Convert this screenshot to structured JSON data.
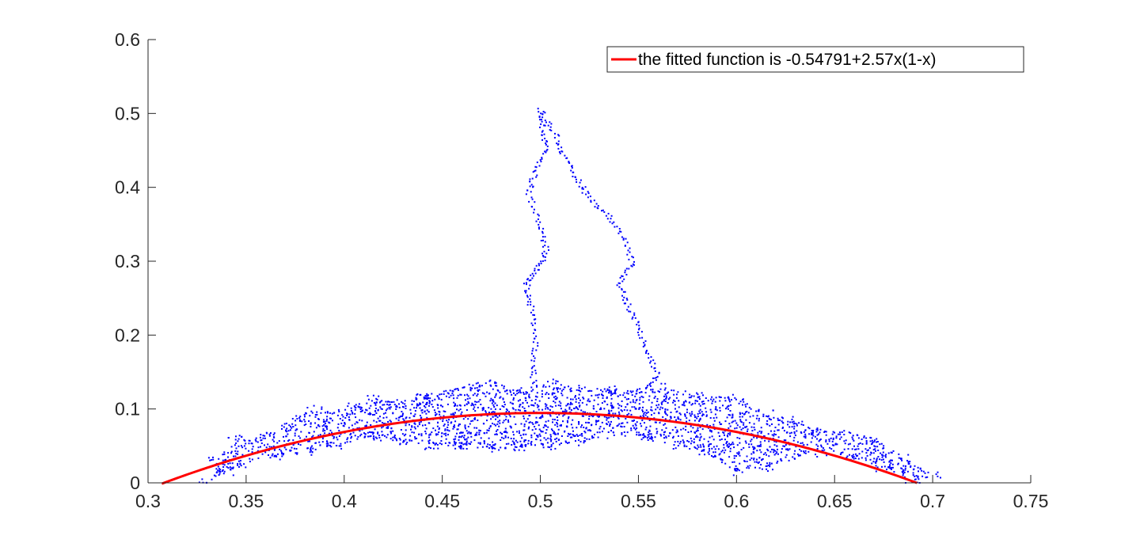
{
  "chart_data": {
    "type": "scatter",
    "title": "",
    "xlabel": "",
    "ylabel": "",
    "xlim": [
      0.3,
      0.75
    ],
    "ylim": [
      0,
      0.6
    ],
    "x_ticks": [
      "0.3",
      "0.35",
      "0.4",
      "0.45",
      "0.5",
      "0.55",
      "0.6",
      "0.65",
      "0.7",
      "0.75"
    ],
    "y_ticks": [
      "0",
      "0.1",
      "0.2",
      "0.3",
      "0.4",
      "0.5",
      "0.6"
    ],
    "grid": false,
    "legend_position": "top-right",
    "series": [
      {
        "kind": "scatter",
        "color": "#0000ff",
        "cloud_outline": [
          [
            0.33,
            0.0
          ],
          [
            0.335,
            0.03
          ],
          [
            0.345,
            0.06
          ],
          [
            0.36,
            0.065
          ],
          [
            0.375,
            0.09
          ],
          [
            0.385,
            0.1
          ],
          [
            0.395,
            0.095
          ],
          [
            0.405,
            0.105
          ],
          [
            0.415,
            0.115
          ],
          [
            0.425,
            0.11
          ],
          [
            0.44,
            0.118
          ],
          [
            0.46,
            0.13
          ],
          [
            0.475,
            0.14
          ],
          [
            0.49,
            0.125
          ],
          [
            0.505,
            0.135
          ],
          [
            0.52,
            0.13
          ],
          [
            0.535,
            0.127
          ],
          [
            0.55,
            0.125
          ],
          [
            0.565,
            0.13
          ],
          [
            0.58,
            0.12
          ],
          [
            0.6,
            0.115
          ],
          [
            0.615,
            0.095
          ],
          [
            0.63,
            0.085
          ],
          [
            0.64,
            0.07
          ],
          [
            0.655,
            0.07
          ],
          [
            0.67,
            0.06
          ],
          [
            0.685,
            0.035
          ],
          [
            0.7,
            0.01
          ],
          [
            0.69,
            0.0
          ],
          [
            0.675,
            0.02
          ],
          [
            0.66,
            0.035
          ],
          [
            0.645,
            0.04
          ],
          [
            0.63,
            0.035
          ],
          [
            0.615,
            0.02
          ],
          [
            0.6,
            0.015
          ],
          [
            0.585,
            0.04
          ],
          [
            0.57,
            0.05
          ],
          [
            0.555,
            0.06
          ],
          [
            0.535,
            0.065
          ],
          [
            0.52,
            0.055
          ],
          [
            0.505,
            0.05
          ],
          [
            0.49,
            0.048
          ],
          [
            0.475,
            0.045
          ],
          [
            0.46,
            0.05
          ],
          [
            0.445,
            0.05
          ],
          [
            0.43,
            0.055
          ],
          [
            0.415,
            0.062
          ],
          [
            0.395,
            0.05
          ],
          [
            0.38,
            0.04
          ],
          [
            0.365,
            0.035
          ],
          [
            0.35,
            0.025
          ],
          [
            0.34,
            0.015
          ]
        ],
        "spike_left": [
          [
            0.497,
            0.125
          ],
          [
            0.496,
            0.16
          ],
          [
            0.498,
            0.2
          ],
          [
            0.495,
            0.24
          ],
          [
            0.493,
            0.27
          ],
          [
            0.499,
            0.29
          ],
          [
            0.503,
            0.315
          ],
          [
            0.5,
            0.35
          ],
          [
            0.494,
            0.39
          ],
          [
            0.497,
            0.42
          ],
          [
            0.503,
            0.45
          ],
          [
            0.501,
            0.48
          ],
          [
            0.5,
            0.505
          ]
        ],
        "spike_right": [
          [
            0.5,
            0.505
          ],
          [
            0.508,
            0.47
          ],
          [
            0.512,
            0.44
          ],
          [
            0.519,
            0.41
          ],
          [
            0.525,
            0.385
          ],
          [
            0.535,
            0.36
          ],
          [
            0.543,
            0.33
          ],
          [
            0.547,
            0.295
          ],
          [
            0.54,
            0.27
          ],
          [
            0.545,
            0.24
          ],
          [
            0.55,
            0.21
          ],
          [
            0.555,
            0.175
          ],
          [
            0.56,
            0.145
          ],
          [
            0.553,
            0.125
          ]
        ]
      },
      {
        "name": "the fitted function is -0.54791+2.57x(1-x)",
        "kind": "line",
        "color": "#ff0000",
        "formula": {
          "a": -0.54791,
          "b": 2.57
        },
        "x_range": [
          0.307,
          0.692
        ]
      }
    ]
  }
}
